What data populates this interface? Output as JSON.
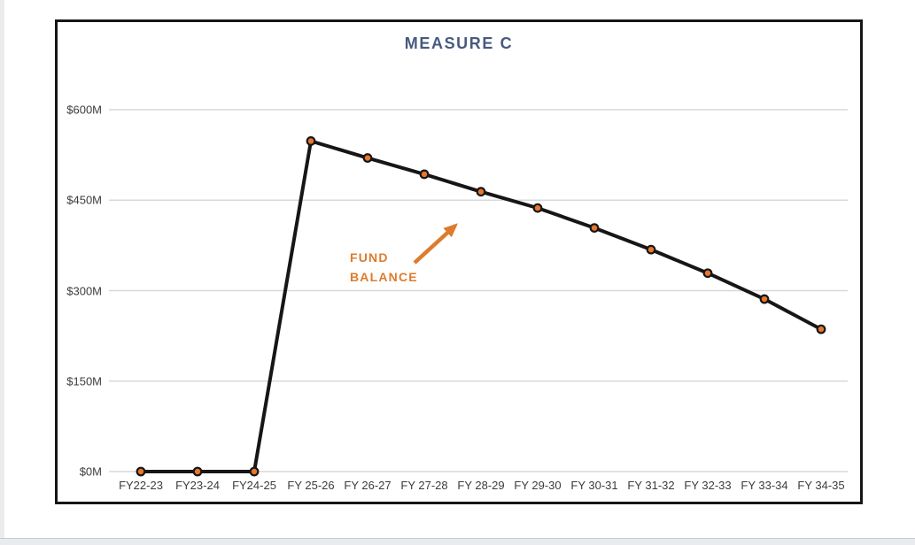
{
  "chart_data": {
    "type": "line",
    "title": "MEASURE C",
    "categories": [
      "FY22-23",
      "FY23-24",
      "FY24-25",
      "FY 25-26",
      "FY 26-27",
      "FY 27-28",
      "FY 28-29",
      "FY 29-30",
      "FY 30-31",
      "FY 31-32",
      "FY 32-33",
      "FY 33-34",
      "FY 34-35"
    ],
    "series": [
      {
        "name": "FUND BALANCE",
        "values": [
          0,
          0,
          0,
          548,
          520,
          493,
          464,
          437,
          404,
          368,
          329,
          286,
          236
        ]
      }
    ],
    "xlabel": "",
    "ylabel": "",
    "ylim": [
      0,
      600
    ],
    "y_ticks": [
      {
        "label": "$0M",
        "value": 0
      },
      {
        "label": "$150M",
        "value": 150
      },
      {
        "label": "$300M",
        "value": 300
      },
      {
        "label": "$450M",
        "value": 450
      },
      {
        "label": "$600M",
        "value": 600
      }
    ],
    "grid": true,
    "legend_position": "none",
    "annotation": {
      "lines": [
        "FUND",
        "BALANCE"
      ],
      "has_arrow": true
    },
    "colors": {
      "line": "#161616",
      "marker_fill": "#e8772b",
      "marker_stroke": "#161616",
      "grid": "#d9d9d9",
      "title": "#47597f",
      "annotation": "#dd7c2e",
      "axis_text": "#3c3c3c",
      "frame_border": "#161616"
    }
  }
}
